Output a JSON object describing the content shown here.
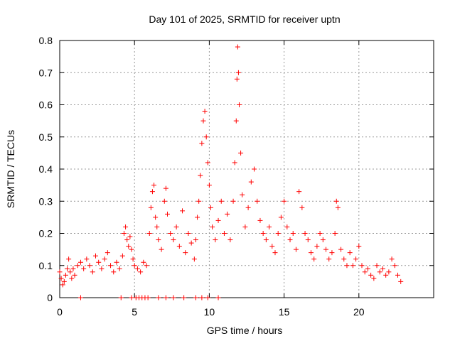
{
  "chart_data": {
    "type": "scatter",
    "title": "Day 101 of 2025, SRMTID for receiver uptn",
    "xlabel": "GPS time / hours",
    "ylabel": "SRMTID / TECUs",
    "xlim": [
      0,
      25
    ],
    "ylim": [
      0,
      0.8
    ],
    "xticks": [
      0,
      5,
      10,
      15,
      20
    ],
    "xtick_labels": [
      "0",
      "5",
      "10",
      "15",
      "20"
    ],
    "yticks": [
      0,
      0.1,
      0.2,
      0.3,
      0.4,
      0.5,
      0.6,
      0.7,
      0.8
    ],
    "ytick_labels": [
      "0",
      "0.1",
      "0.2",
      "0.3",
      "0.4",
      "0.5",
      "0.6",
      "0.7",
      "0.8"
    ],
    "grid": true,
    "marker": "+",
    "color": "#ff0000",
    "series": [
      {
        "name": "SRMTID",
        "x": [
          0.0,
          0.1,
          0.2,
          0.3,
          0.4,
          0.5,
          0.6,
          0.7,
          0.8,
          0.9,
          1.0,
          1.2,
          1.4,
          1.6,
          1.8,
          2.0,
          2.2,
          2.4,
          2.6,
          2.8,
          3.0,
          3.2,
          3.4,
          3.6,
          3.8,
          4.0,
          4.2,
          4.3,
          4.4,
          4.5,
          4.6,
          4.7,
          4.8,
          4.9,
          5.0,
          5.2,
          5.4,
          5.6,
          5.8,
          6.0,
          6.1,
          6.2,
          6.3,
          6.4,
          6.5,
          6.6,
          6.8,
          7.0,
          7.1,
          7.2,
          7.4,
          7.6,
          7.8,
          8.0,
          8.2,
          8.4,
          8.6,
          8.8,
          9.0,
          9.1,
          9.2,
          9.3,
          9.4,
          9.5,
          9.6,
          9.7,
          9.8,
          9.9,
          10.0,
          10.1,
          10.2,
          10.4,
          10.6,
          10.8,
          11.0,
          11.2,
          11.4,
          11.6,
          11.7,
          11.8,
          11.85,
          11.9,
          11.95,
          12.0,
          12.1,
          12.2,
          12.4,
          12.6,
          12.8,
          13.0,
          13.2,
          13.4,
          13.6,
          13.8,
          14.0,
          14.2,
          14.4,
          14.6,
          14.8,
          15.0,
          15.2,
          15.4,
          15.6,
          15.8,
          16.0,
          16.2,
          16.4,
          16.6,
          16.8,
          17.0,
          17.2,
          17.4,
          17.6,
          17.8,
          18.0,
          18.2,
          18.4,
          18.5,
          18.6,
          18.8,
          19.0,
          19.2,
          19.4,
          19.6,
          19.8,
          20.0,
          20.2,
          20.4,
          20.6,
          20.8,
          21.0,
          21.2,
          21.4,
          21.6,
          21.8,
          22.0,
          22.2,
          22.4,
          22.6,
          22.8,
          1.4,
          4.1,
          4.8,
          5.1,
          5.3,
          5.5,
          5.7,
          5.9,
          6.6,
          7.1,
          7.6,
          8.3,
          9.1,
          9.5,
          9.9,
          10.6
        ],
        "y": [
          0.08,
          0.06,
          0.04,
          0.05,
          0.07,
          0.09,
          0.12,
          0.08,
          0.06,
          0.09,
          0.07,
          0.1,
          0.11,
          0.09,
          0.12,
          0.1,
          0.08,
          0.13,
          0.11,
          0.09,
          0.12,
          0.14,
          0.1,
          0.08,
          0.11,
          0.09,
          0.13,
          0.2,
          0.22,
          0.18,
          0.16,
          0.19,
          0.15,
          0.12,
          0.1,
          0.09,
          0.08,
          0.11,
          0.1,
          0.2,
          0.28,
          0.33,
          0.35,
          0.25,
          0.22,
          0.18,
          0.15,
          0.3,
          0.34,
          0.26,
          0.2,
          0.18,
          0.22,
          0.16,
          0.27,
          0.14,
          0.2,
          0.17,
          0.12,
          0.18,
          0.25,
          0.3,
          0.38,
          0.48,
          0.55,
          0.58,
          0.5,
          0.42,
          0.35,
          0.28,
          0.22,
          0.18,
          0.24,
          0.3,
          0.2,
          0.26,
          0.18,
          0.3,
          0.42,
          0.55,
          0.68,
          0.78,
          0.7,
          0.6,
          0.45,
          0.32,
          0.22,
          0.28,
          0.36,
          0.4,
          0.3,
          0.24,
          0.2,
          0.18,
          0.22,
          0.16,
          0.14,
          0.2,
          0.25,
          0.3,
          0.22,
          0.18,
          0.2,
          0.15,
          0.33,
          0.28,
          0.2,
          0.18,
          0.14,
          0.12,
          0.16,
          0.2,
          0.18,
          0.15,
          0.12,
          0.14,
          0.2,
          0.3,
          0.28,
          0.15,
          0.12,
          0.1,
          0.14,
          0.1,
          0.12,
          0.16,
          0.1,
          0.08,
          0.09,
          0.07,
          0.06,
          0.1,
          0.08,
          0.09,
          0.07,
          0.08,
          0.12,
          0.1,
          0.07,
          0.05,
          0.0,
          0.0,
          0.0,
          0.0,
          0.0,
          0.0,
          0.0,
          0.0,
          0.0,
          0.0,
          0.0,
          0.0,
          0.0,
          0.0,
          0.0,
          0.0
        ]
      }
    ]
  }
}
